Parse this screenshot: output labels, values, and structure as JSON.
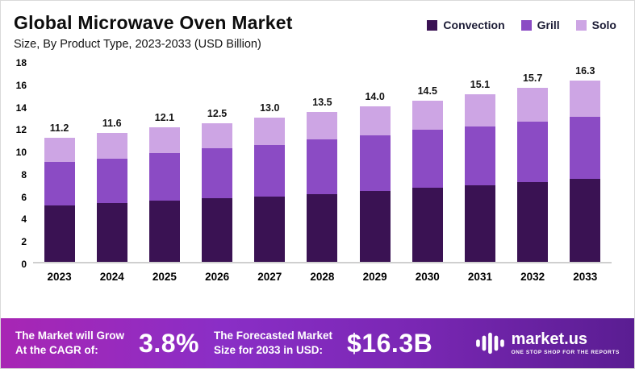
{
  "chart_data": {
    "type": "bar",
    "stacked": true,
    "title": "Global Microwave Oven Market",
    "subtitle": "Size, By Product Type, 2023-2033 (USD Billion)",
    "categories": [
      "2023",
      "2024",
      "2025",
      "2026",
      "2027",
      "2028",
      "2029",
      "2030",
      "2031",
      "2032",
      "2033"
    ],
    "series": [
      {
        "name": "Convection",
        "color": "#3a1253",
        "values": [
          5.1,
          5.3,
          5.5,
          5.7,
          5.9,
          6.1,
          6.4,
          6.7,
          6.9,
          7.2,
          7.5
        ]
      },
      {
        "name": "Grill",
        "color": "#8b4bc4",
        "values": [
          3.9,
          4.0,
          4.3,
          4.5,
          4.6,
          4.9,
          5.0,
          5.2,
          5.3,
          5.4,
          5.6
        ]
      },
      {
        "name": "Solo",
        "color": "#cda5e4",
        "values": [
          2.2,
          2.3,
          2.3,
          2.3,
          2.5,
          2.5,
          2.6,
          2.6,
          2.9,
          3.1,
          3.2
        ]
      }
    ],
    "totals": [
      11.2,
      11.6,
      12.1,
      12.5,
      13.0,
      13.5,
      14.0,
      14.5,
      15.1,
      15.7,
      16.3
    ],
    "yticks": [
      0,
      2,
      4,
      6,
      8,
      10,
      12,
      14,
      16,
      18
    ],
    "ylim": [
      0,
      18
    ],
    "grid": false,
    "legend_position": "top-right"
  },
  "banner": {
    "cagr_label_line1": "The Market will Grow",
    "cagr_label_line2": "At the CAGR of:",
    "cagr_value": "3.8%",
    "forecast_label_line1": "The Forecasted Market",
    "forecast_label_line2": "Size for 2033 in USD:",
    "forecast_value": "$16.3B",
    "logo_text": "market.us",
    "logo_tagline": "ONE STOP SHOP FOR THE REPORTS"
  }
}
